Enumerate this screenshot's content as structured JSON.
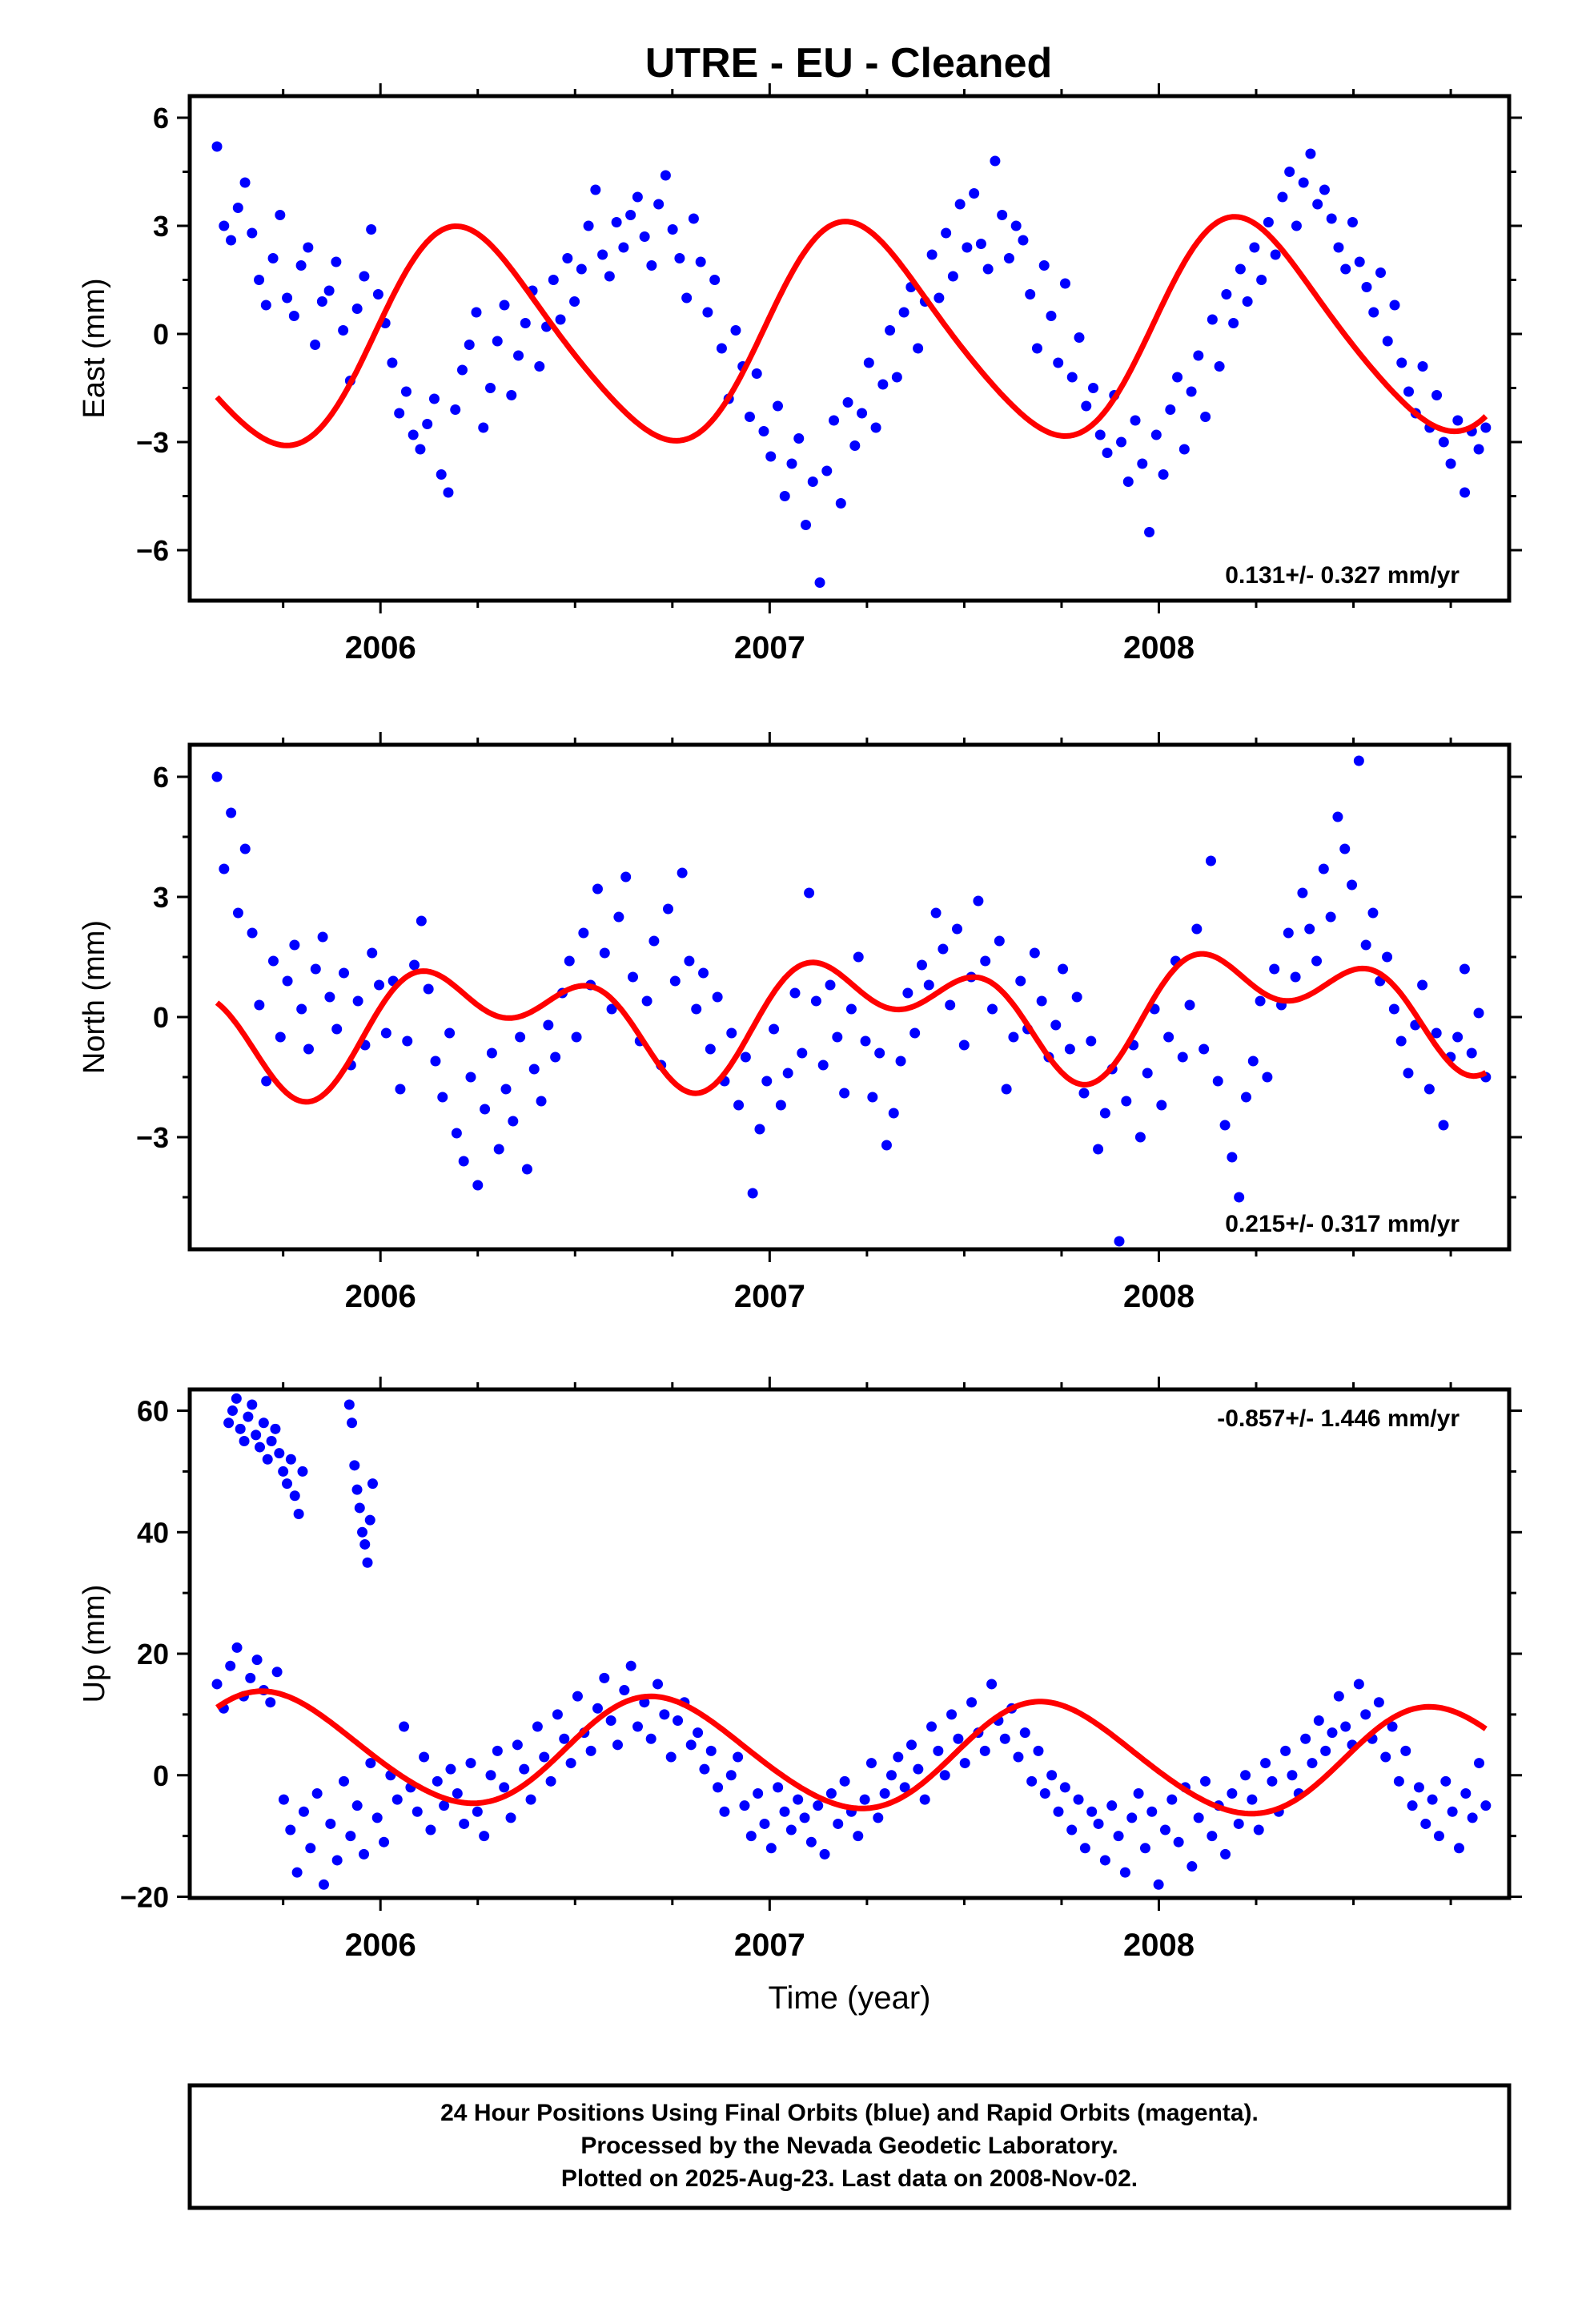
{
  "title": "UTRE  - EU - Cleaned",
  "footer": {
    "line1": "24 Hour Positions Using Final Orbits (blue) and Rapid Orbits (magenta).",
    "line2": "Processed by the Nevada Geodetic Laboratory.",
    "line3": "Plotted on 2025-Aug-23. Last data on 2008-Nov-02."
  },
  "colors": {
    "points": "#0000ff",
    "fit": "#ff0000",
    "frame": "#000000"
  },
  "chart_data": [
    {
      "type": "scatter",
      "title": "UTRE  - EU - Cleaned",
      "ylabel": "East (mm)",
      "xlabel": "",
      "xlim": [
        2005.51,
        2008.9
      ],
      "ylim": [
        -7.4,
        6.6
      ],
      "xticks": [
        "2006",
        "2007",
        "2008"
      ],
      "yticks": [
        "6",
        "3",
        "0",
        "−3",
        "−6"
      ],
      "ytick_values": [
        6,
        3,
        0,
        -3,
        -6
      ],
      "rate_text": "0.131+/- 0.327 mm/yr",
      "rate_position": "bottom-right",
      "x_start": 2005.58,
      "x_end": 2008.84,
      "observations": [
        5.2,
        3.0,
        2.6,
        3.5,
        4.2,
        2.8,
        1.5,
        0.8,
        2.1,
        3.3,
        1.0,
        0.5,
        1.9,
        2.4,
        -0.3,
        0.9,
        1.2,
        2.0,
        0.1,
        -1.3,
        0.7,
        1.6,
        2.9,
        1.1,
        0.3,
        -0.8,
        -2.2,
        -1.6,
        -2.8,
        -3.2,
        -2.5,
        -1.8,
        -3.9,
        -4.4,
        -2.1,
        -1.0,
        -0.3,
        0.6,
        -2.6,
        -1.5,
        -0.2,
        0.8,
        -1.7,
        -0.6,
        0.3,
        1.2,
        -0.9,
        0.2,
        1.5,
        0.4,
        2.1,
        0.9,
        1.8,
        3.0,
        4.0,
        2.2,
        1.6,
        3.1,
        2.4,
        3.3,
        3.8,
        2.7,
        1.9,
        3.6,
        4.4,
        2.9,
        2.1,
        1.0,
        3.2,
        2.0,
        0.6,
        1.5,
        -0.4,
        -1.8,
        0.1,
        -0.9,
        -2.3,
        -1.1,
        -2.7,
        -3.4,
        -2.0,
        -4.5,
        -3.6,
        -2.9,
        -5.3,
        -4.1,
        -6.9,
        -3.8,
        -2.4,
        -4.7,
        -1.9,
        -3.1,
        -2.2,
        -0.8,
        -2.6,
        -1.4,
        0.1,
        -1.2,
        0.6,
        1.3,
        -0.4,
        0.9,
        2.2,
        1.0,
        2.8,
        1.6,
        3.6,
        2.4,
        3.9,
        2.5,
        1.8,
        4.8,
        3.3,
        2.1,
        3.0,
        2.6,
        1.1,
        -0.4,
        1.9,
        0.5,
        -0.8,
        1.4,
        -1.2,
        -0.1,
        -2.0,
        -1.5,
        -2.8,
        -3.3,
        -1.7,
        -3.0,
        -4.1,
        -2.4,
        -3.6,
        -5.5,
        -2.8,
        -3.9,
        -2.1,
        -1.2,
        -3.2,
        -1.6,
        -0.6,
        -2.3,
        0.4,
        -0.9,
        1.1,
        0.3,
        1.8,
        0.9,
        2.4,
        1.5,
        3.1,
        2.2,
        3.8,
        4.5,
        3.0,
        4.2,
        5.0,
        3.6,
        4.0,
        3.2,
        2.4,
        1.8,
        3.1,
        2.0,
        1.3,
        0.6,
        1.7,
        -0.2,
        0.8,
        -0.8,
        -1.6,
        -2.2,
        -0.9,
        -2.6,
        -1.7,
        -3.0,
        -3.6,
        -2.4,
        -4.4,
        -2.7,
        -3.2,
        -2.6
      ],
      "fit": {
        "mean": 0.0,
        "rate": 0.131,
        "annual": [
          2.9,
          0.5
        ],
        "semiannual": [
          0.35,
          0.0
        ],
        "boundary_x": 2005.58,
        "boundary_y": 0.5
      }
    },
    {
      "type": "scatter",
      "ylabel": "North (mm)",
      "xlabel": "",
      "xlim": [
        2005.51,
        2008.9
      ],
      "ylim": [
        -5.8,
        6.8
      ],
      "xticks": [
        "2006",
        "2007",
        "2008"
      ],
      "yticks": [
        "6",
        "3",
        "0",
        "−3"
      ],
      "ytick_values": [
        6,
        3,
        0,
        -3
      ],
      "rate_text": "0.215+/- 0.317 mm/yr",
      "rate_position": "bottom-right",
      "x_start": 2005.58,
      "x_end": 2008.84,
      "observations": [
        6.0,
        3.7,
        5.1,
        2.6,
        4.2,
        2.1,
        0.3,
        -1.6,
        1.4,
        -0.5,
        0.9,
        1.8,
        0.2,
        -0.8,
        1.2,
        2.0,
        0.5,
        -0.3,
        1.1,
        -1.2,
        0.4,
        -0.7,
        1.6,
        0.8,
        -0.4,
        0.9,
        -1.8,
        -0.6,
        1.3,
        2.4,
        0.7,
        -1.1,
        -2.0,
        -0.4,
        -2.9,
        -3.6,
        -1.5,
        -4.2,
        -2.3,
        -0.9,
        -3.3,
        -1.8,
        -2.6,
        -0.5,
        -3.8,
        -1.3,
        -2.1,
        -0.2,
        -1.0,
        0.6,
        1.4,
        -0.5,
        2.1,
        0.8,
        3.2,
        1.6,
        0.2,
        2.5,
        3.5,
        1.0,
        -0.6,
        0.4,
        1.9,
        -1.2,
        2.7,
        0.9,
        3.6,
        1.4,
        0.2,
        1.1,
        -0.8,
        0.5,
        -1.6,
        -0.4,
        -2.2,
        -1.0,
        -4.4,
        -2.8,
        -1.6,
        -0.3,
        -2.2,
        -1.4,
        0.6,
        -0.9,
        3.1,
        0.4,
        -1.2,
        0.8,
        -0.5,
        -1.9,
        0.2,
        1.5,
        -0.6,
        -2.0,
        -0.9,
        -3.2,
        -2.4,
        -1.1,
        0.6,
        -0.4,
        1.3,
        0.8,
        2.6,
        1.7,
        0.3,
        2.2,
        -0.7,
        1.0,
        2.9,
        1.4,
        0.2,
        1.9,
        -1.8,
        -0.5,
        0.9,
        -0.3,
        1.6,
        0.4,
        -1.0,
        -0.2,
        1.2,
        -0.8,
        0.5,
        -1.9,
        -0.6,
        -3.3,
        -2.4,
        -1.3,
        -5.6,
        -2.1,
        -0.7,
        -3.0,
        -1.4,
        0.2,
        -2.2,
        -0.5,
        1.4,
        -1.0,
        0.3,
        2.2,
        -0.8,
        3.9,
        -1.6,
        -2.7,
        -3.5,
        -4.5,
        -2.0,
        -1.1,
        0.4,
        -1.5,
        1.2,
        0.3,
        2.1,
        1.0,
        3.1,
        2.2,
        1.4,
        3.7,
        2.5,
        5.0,
        4.2,
        3.3,
        6.4,
        1.8,
        2.6,
        0.9,
        1.5,
        0.2,
        -0.6,
        -1.4,
        -0.2,
        0.8,
        -1.8,
        -0.4,
        -2.7,
        -1.0,
        -0.5,
        1.2,
        -0.9,
        0.1,
        -1.5
      ],
      "fit": {
        "mean": 0.1,
        "rate": 0.215,
        "annual": [
          1.0,
          -0.2
        ],
        "semiannual": [
          0.7,
          0.6
        ],
        "boundary_x": 2005.58,
        "boundary_y": 1.0
      }
    },
    {
      "type": "scatter",
      "ylabel": "Up (mm)",
      "xlabel": "Time (year)",
      "xlim": [
        2005.51,
        2008.9
      ],
      "ylim": [
        -20.2,
        63.5
      ],
      "xticks": [
        "2006",
        "2007",
        "2008"
      ],
      "yticks": [
        "60",
        "40",
        "20",
        "0",
        "−20"
      ],
      "ytick_values": [
        60,
        40,
        20,
        0,
        -20
      ],
      "rate_text": "-0.857+/- 1.446 mm/yr",
      "rate_position": "top-right",
      "x_start": 2005.58,
      "x_end": 2008.84,
      "outlier_segments": [
        {
          "x_start": 2005.61,
          "x_end": 2005.8,
          "values": [
            58,
            60,
            62,
            57,
            55,
            59,
            61,
            56,
            54,
            58,
            52,
            55,
            57,
            53,
            50,
            48,
            52,
            46,
            43,
            50
          ]
        },
        {
          "x_start": 2005.92,
          "x_end": 2005.98,
          "values": [
            61,
            58,
            51,
            47,
            44,
            40,
            38,
            35,
            42,
            48
          ]
        }
      ],
      "observations": [
        15,
        11,
        18,
        21,
        13,
        16,
        19,
        14,
        12,
        17,
        -4,
        -9,
        -16,
        -6,
        -12,
        -3,
        -18,
        -8,
        -14,
        -1,
        -10,
        -5,
        -13,
        2,
        -7,
        -11,
        0,
        -4,
        8,
        -2,
        -6,
        3,
        -9,
        -1,
        -5,
        1,
        -3,
        -8,
        2,
        -6,
        -10,
        0,
        4,
        -2,
        -7,
        5,
        1,
        -4,
        8,
        3,
        -1,
        10,
        6,
        2,
        13,
        7,
        4,
        11,
        16,
        9,
        5,
        14,
        18,
        8,
        12,
        6,
        15,
        10,
        3,
        9,
        12,
        5,
        7,
        1,
        4,
        -2,
        -6,
        0,
        3,
        -5,
        -10,
        -3,
        -8,
        -12,
        -2,
        -6,
        -9,
        -4,
        -7,
        -11,
        -5,
        -13,
        -3,
        -8,
        -1,
        -6,
        -10,
        -4,
        2,
        -7,
        -3,
        0,
        3,
        -2,
        5,
        1,
        -4,
        8,
        4,
        0,
        10,
        6,
        2,
        12,
        7,
        4,
        15,
        9,
        6,
        11,
        3,
        7,
        -1,
        4,
        -3,
        0,
        -6,
        -2,
        -9,
        -4,
        -12,
        -6,
        -8,
        -14,
        -5,
        -10,
        -16,
        -7,
        -3,
        -12,
        -6,
        -18,
        -9,
        -4,
        -11,
        -2,
        -15,
        -7,
        -1,
        -10,
        -5,
        -13,
        -3,
        -8,
        0,
        -4,
        -9,
        2,
        -1,
        -6,
        4,
        0,
        -3,
        6,
        2,
        9,
        4,
        7,
        13,
        8,
        5,
        15,
        10,
        6,
        12,
        3,
        8,
        -1,
        4,
        -5,
        -2,
        -8,
        -4,
        -10,
        -1,
        -6,
        -12,
        -3,
        -7,
        2,
        -5
      ],
      "fit": {
        "mean": 3.3,
        "rate": -0.857,
        "annual": [
          -8.7,
          -2.0
        ],
        "semiannual": [
          0.6,
          0.0
        ],
        "boundary_x": 2005.58,
        "boundary_y": 13.0
      }
    }
  ]
}
